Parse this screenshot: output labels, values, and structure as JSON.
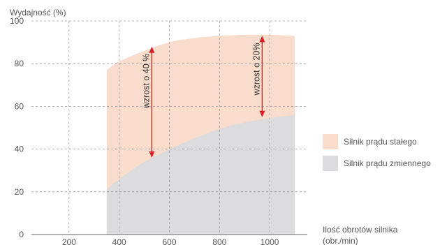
{
  "chart_data": {
    "type": "area",
    "ylabel": "Wydajność (%)",
    "xlabel_line1": "Ilość obrotów silnika",
    "xlabel_line2": "(obr./min)",
    "xlim": [
      50,
      1150
    ],
    "ylim": [
      0,
      100
    ],
    "x_ticks": [
      {
        "value": 200,
        "label": "200"
      },
      {
        "value": 400,
        "label": "400"
      },
      {
        "value": 600,
        "label": "600"
      },
      {
        "value": 800,
        "label": "800"
      },
      {
        "value": 1000,
        "label": "1000"
      }
    ],
    "y_ticks": [
      {
        "value": 0,
        "label": "0"
      },
      {
        "value": 20,
        "label": "20"
      },
      {
        "value": 40,
        "label": "40"
      },
      {
        "value": 60,
        "label": "60"
      },
      {
        "value": 80,
        "label": "80"
      },
      {
        "value": 100,
        "label": "100"
      }
    ],
    "grid": true,
    "legend_position": "right",
    "series": [
      {
        "name": "Silnik prądu stałego",
        "color": "#f9dccb",
        "x": [
          350,
          400,
          500,
          600,
          700,
          800,
          900,
          1000,
          1100
        ],
        "y": [
          77,
          81,
          86,
          90,
          92,
          93,
          93.5,
          93.5,
          93
        ]
      },
      {
        "name": "Silnik prądu zmiennego",
        "color": "#dcdcde",
        "x": [
          350,
          400,
          500,
          600,
          700,
          800,
          900,
          1000,
          1100
        ],
        "y": [
          21,
          26,
          34,
          40,
          45,
          49.5,
          52.5,
          54.5,
          56
        ]
      }
    ],
    "annotations": [
      {
        "text": "wzrost o 40 %",
        "x": 530,
        "y_from": 88,
        "y_to": 36,
        "color": "#d61f26"
      },
      {
        "text": "wzrost o 20%",
        "x": 970,
        "y_from": 93,
        "y_to": 55,
        "color": "#d61f26"
      }
    ]
  }
}
